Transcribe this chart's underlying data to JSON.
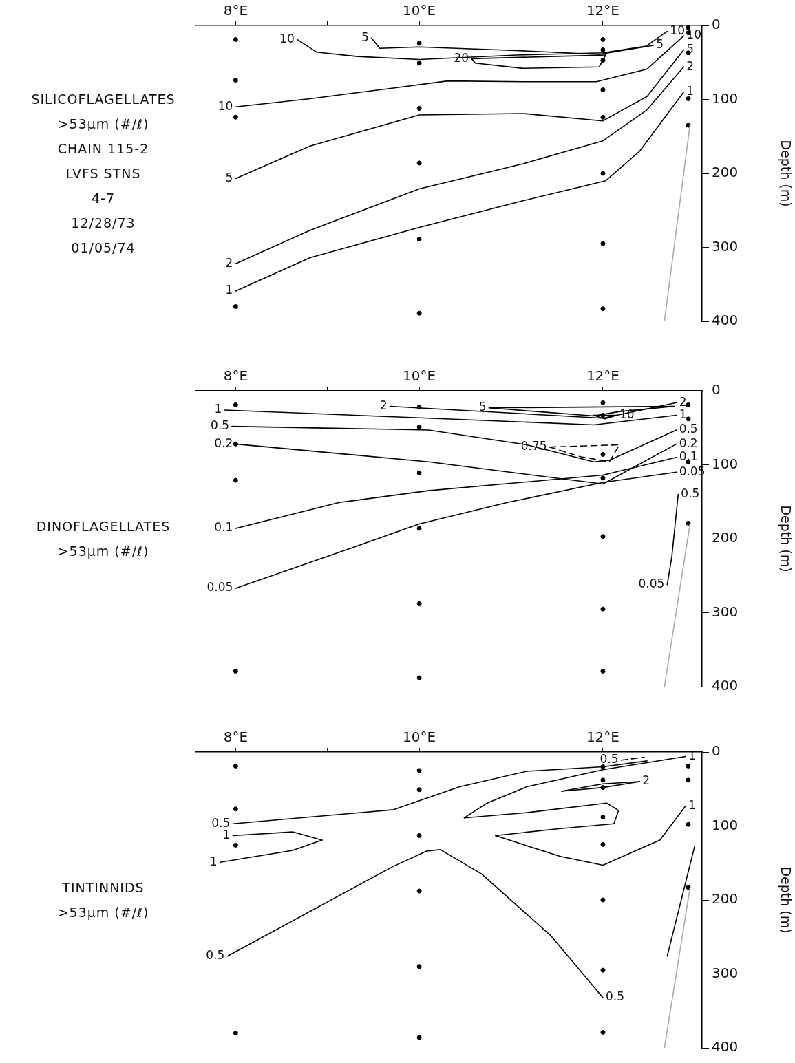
{
  "chart_data": [
    {
      "type": "line",
      "title": "SILICOFLAGELLATES",
      "subtitle": ">53μm (#/ℓ)",
      "ylabel": "Depth (m)",
      "xlim": [
        7.57,
        13.08
      ],
      "xticks": [
        {
          "value": 8,
          "label": "8°E"
        },
        {
          "value": 9,
          "label": null
        },
        {
          "value": 10,
          "label": "10°E"
        },
        {
          "value": 11,
          "label": null
        },
        {
          "value": 12,
          "label": "12°E"
        }
      ],
      "ylim": [
        400,
        0
      ],
      "yticks": [
        0,
        100,
        200,
        300,
        400
      ],
      "grid": false,
      "legend": false,
      "marker": "none",
      "line_style": "solid",
      "annotations": [
        "CHAIN 115-2",
        "LVFS STNS",
        "4-7",
        "12/28/73",
        "01/05/74",
        {
          "text": "10",
          "x": 8.67,
          "y": 19
        },
        {
          "text": "5",
          "x": 9.48,
          "y": 17
        },
        {
          "text": "5",
          "x": 12.55,
          "y": 27
        },
        {
          "text": "10",
          "x": 12.7,
          "y": 8
        },
        {
          "text": "20",
          "x": 10.57,
          "y": 45
        },
        {
          "text": "10",
          "x": 12.88,
          "y": 14
        },
        {
          "text": "5",
          "x": 12.88,
          "y": 33
        },
        {
          "text": "2",
          "x": 12.88,
          "y": 56
        },
        {
          "text": "1",
          "x": 12.88,
          "y": 90
        },
        {
          "text": "10",
          "x": 8,
          "y": 110
        },
        {
          "text": "5",
          "x": 8,
          "y": 207
        },
        {
          "text": "2",
          "x": 8,
          "y": 322
        },
        {
          "text": "1",
          "x": 8,
          "y": 359
        }
      ],
      "series": [
        {
          "type": "scatter",
          "marker": "circle",
          "color": "#000000",
          "x": [
            8,
            8,
            8,
            8,
            10,
            10,
            10,
            10,
            10,
            10,
            12,
            12,
            12,
            12,
            12,
            12,
            12,
            12,
            12.93,
            12.93,
            12.93,
            12.93,
            12.93
          ],
          "values": [
            19,
            74,
            124,
            380,
            24,
            51,
            112,
            186,
            289,
            389,
            19,
            33,
            47,
            87,
            124,
            200,
            295,
            383,
            3,
            10,
            37,
            99,
            135
          ]
        },
        {
          "color": "#000000",
          "x": [
            8.67,
            8.88,
            9.33,
            10,
            11.06,
            12,
            12.47,
            12.7
          ],
          "values": [
            19,
            36,
            42,
            46,
            40,
            37,
            28,
            8
          ]
        },
        {
          "color": "#000000",
          "x": [
            9.48,
            9.57,
            10,
            11.06,
            11.96,
            12.55
          ],
          "values": [
            17,
            31,
            29,
            34,
            39,
            27
          ]
        },
        {
          "color": "#000000",
          "x": [
            10.57,
            11.43,
            12.03
          ],
          "values": [
            45,
            42,
            40
          ]
        },
        {
          "color": "#000000",
          "x": [
            10.57,
            10.61,
            11.13,
            11.96,
            12.03
          ],
          "values": [
            45,
            51,
            58,
            56,
            40
          ]
        },
        {
          "color": "#000000",
          "x": [
            8,
            8.81,
            9.63,
            10.31,
            11.13,
            11.93,
            12.48,
            12.88
          ],
          "values": [
            110,
            99,
            86,
            75,
            76,
            76,
            59,
            14
          ]
        },
        {
          "color": "#000000",
          "x": [
            8,
            8.81,
            10,
            11.13,
            12,
            12.48,
            12.88
          ],
          "values": [
            207,
            163,
            121,
            119,
            129,
            96,
            33
          ]
        },
        {
          "color": "#000000",
          "x": [
            8,
            8.81,
            10,
            11.13,
            12,
            12.48,
            12.88
          ],
          "values": [
            322,
            277,
            221,
            187,
            156,
            114,
            56
          ]
        },
        {
          "color": "#000000",
          "x": [
            8,
            8.81,
            10,
            11.13,
            12.03,
            12.4,
            12.88
          ],
          "values": [
            359,
            314,
            273,
            237,
            210,
            170,
            90
          ]
        },
        {
          "color": "#aaaaaa",
          "x": [
            12.67,
            12.95
          ],
          "values": [
            400,
            133
          ]
        }
      ]
    },
    {
      "type": "line",
      "title": "DINOFLAGELLATES",
      "subtitle": ">53μm (#/ℓ)",
      "ylabel": "Depth (m)",
      "xlim": [
        7.57,
        13.08
      ],
      "xticks": [
        {
          "value": 8,
          "label": "8°E"
        },
        {
          "value": 9,
          "label": null
        },
        {
          "value": 10,
          "label": "10°E"
        },
        {
          "value": 11,
          "label": null
        },
        {
          "value": 12,
          "label": "12°E"
        }
      ],
      "ylim": [
        400,
        0
      ],
      "yticks": [
        0,
        100,
        200,
        300,
        400
      ],
      "grid": false,
      "legend": false,
      "marker": "none",
      "line_style": "solid",
      "annotations": [
        {
          "text": "1",
          "x": 7.88,
          "y": 26
        },
        {
          "text": "0.5",
          "x": 7.96,
          "y": 48
        },
        {
          "text": "0.2",
          "x": 8,
          "y": 72
        },
        {
          "text": "2",
          "x": 9.68,
          "y": 21
        },
        {
          "text": "5",
          "x": 10.76,
          "y": 23
        },
        {
          "text": "10",
          "x": 12.15,
          "y": 33
        },
        {
          "text": "0.75",
          "x": 11.42,
          "y": 76
        },
        {
          "text": "2",
          "x": 12.8,
          "y": 16
        },
        {
          "text": "1",
          "x": 12.8,
          "y": 33
        },
        {
          "text": "0.5",
          "x": 12.8,
          "y": 53
        },
        {
          "text": "0.2",
          "x": 12.8,
          "y": 72
        },
        {
          "text": "0.1",
          "x": 12.8,
          "y": 90
        },
        {
          "text": "0.05",
          "x": 12.8,
          "y": 110
        },
        {
          "text": "0.5",
          "x": 12.82,
          "y": 140
        },
        {
          "text": "0.1",
          "x": 8,
          "y": 186
        },
        {
          "text": "0.05",
          "x": 8,
          "y": 267
        },
        {
          "text": "0.05",
          "x": 12.7,
          "y": 262
        }
      ],
      "series": [
        {
          "type": "scatter",
          "marker": "circle",
          "color": "#000000",
          "x": [
            8,
            8,
            8,
            8,
            10,
            10,
            10,
            10,
            10,
            10,
            12,
            12,
            12,
            12,
            12,
            12,
            12,
            12.93,
            12.93,
            12.93,
            12.93
          ],
          "values": [
            19,
            72,
            121,
            379,
            22,
            49,
            111,
            186,
            288,
            388,
            16,
            33,
            86,
            118,
            197,
            295,
            379,
            19,
            38,
            96,
            179
          ]
        },
        {
          "color": "#000000",
          "x": [
            7.88,
            10.1,
            11.9,
            12.8
          ],
          "values": [
            26,
            37,
            46,
            33
          ]
        },
        {
          "color": "#000000",
          "x": [
            9.68,
            12,
            12.8
          ],
          "values": [
            21,
            37,
            16
          ]
        },
        {
          "color": "#000000",
          "x": [
            10.76,
            11.8,
            12.78
          ],
          "values": [
            23,
            22,
            21
          ]
        },
        {
          "color": "#000000",
          "x": [
            10.76,
            11.28,
            11.9,
            12.18,
            12.78
          ],
          "values": [
            23,
            28,
            34,
            28,
            21
          ]
        },
        {
          "color": "#000000",
          "x": [
            11.9,
            12.15
          ],
          "values": [
            33,
            33
          ]
        },
        {
          "color": "#000000",
          "x": [
            11.9,
            12.02,
            12.15
          ],
          "values": [
            33,
            38,
            33
          ]
        },
        {
          "color": "#000000",
          "line_style": "dashed",
          "x": [
            11.42,
            12.18
          ],
          "values": [
            76,
            73
          ]
        },
        {
          "color": "#000000",
          "line_style": "dashed",
          "x": [
            11.42,
            11.75,
            12.07,
            12.18
          ],
          "values": [
            76,
            89,
            96,
            73
          ]
        },
        {
          "color": "#000000",
          "x": [
            7.96,
            10.1,
            11.17,
            11.9,
            12.07,
            12.8
          ],
          "values": [
            48,
            53,
            73,
            96,
            94,
            53
          ]
        },
        {
          "color": "#000000",
          "x": [
            8,
            10.1,
            12,
            12.8
          ],
          "values": [
            72,
            96,
            126,
            72
          ]
        },
        {
          "color": "#000000",
          "x": [
            8,
            9.13,
            10.1,
            12,
            12.8
          ],
          "values": [
            186,
            151,
            135,
            114,
            90
          ]
        },
        {
          "color": "#000000",
          "x": [
            8,
            9.18,
            10,
            10.96,
            12,
            12.8
          ],
          "values": [
            267,
            216,
            180,
            151,
            124,
            110
          ]
        },
        {
          "color": "#000000",
          "x": [
            12.7,
            12.75,
            12.82
          ],
          "values": [
            262,
            225,
            140
          ]
        },
        {
          "color": "#aaaaaa",
          "x": [
            12.67,
            12.95
          ],
          "values": [
            400,
            179
          ]
        }
      ]
    },
    {
      "type": "line",
      "title": "TINTINNIDS",
      "subtitle": ">53μm (#/ℓ)",
      "ylabel": "Depth (m)",
      "xlim": [
        7.57,
        13.08
      ],
      "xticks": [
        {
          "value": 8,
          "label": "8°E"
        },
        {
          "value": 9,
          "label": null
        },
        {
          "value": 10,
          "label": "10°E"
        },
        {
          "value": 11,
          "label": null
        },
        {
          "value": 12,
          "label": "12°E"
        }
      ],
      "ylim": [
        400,
        0
      ],
      "yticks": [
        0,
        100,
        200,
        300,
        400
      ],
      "grid": false,
      "legend": false,
      "marker": "none",
      "line_style": "solid",
      "annotations": [
        {
          "text": "0.5",
          "x": 12.2,
          "y": 11
        },
        {
          "text": "1",
          "x": 12.9,
          "y": 6
        },
        {
          "text": "2",
          "x": 12.4,
          "y": 40
        },
        {
          "text": "0.5",
          "x": 7.97,
          "y": 97
        },
        {
          "text": "1",
          "x": 7.97,
          "y": 113
        },
        {
          "text": "1",
          "x": 7.83,
          "y": 149
        },
        {
          "text": "1",
          "x": 12.9,
          "y": 73
        },
        {
          "text": "0.5",
          "x": 7.91,
          "y": 276
        },
        {
          "text": "0.5",
          "x": 12,
          "y": 332
        }
      ],
      "series": [
        {
          "type": "scatter",
          "marker": "circle",
          "color": "#000000",
          "x": [
            8,
            8,
            8,
            8,
            10,
            10,
            10,
            10,
            10,
            10,
            12,
            12,
            12,
            12,
            12,
            12,
            12,
            12,
            12.93,
            12.93,
            12.93,
            12.93
          ],
          "values": [
            19,
            77,
            126,
            380,
            25,
            51,
            113,
            188,
            290,
            386,
            20,
            38,
            48,
            88,
            125,
            200,
            295,
            379,
            19,
            38,
            98,
            183
          ]
        },
        {
          "color": "#000000",
          "x": [
            7.97,
            9.72,
            10.44,
            11.17,
            12,
            12.48
          ],
          "values": [
            97,
            78,
            47,
            26,
            20,
            12
          ]
        },
        {
          "color": "#000000",
          "line_style": "dashed",
          "x": [
            12.2,
            12.45
          ],
          "values": [
            11,
            7
          ]
        },
        {
          "color": "#000000",
          "x": [
            10.49,
            10.74,
            11.17,
            12,
            12.9
          ],
          "values": [
            89,
            69,
            47,
            24,
            6
          ]
        },
        {
          "color": "#000000",
          "x": [
            10.49,
            11.17,
            12.04,
            12.17
          ],
          "values": [
            89,
            82,
            69,
            79
          ]
        },
        {
          "color": "#000000",
          "x": [
            12.12,
            12.17
          ],
          "values": [
            97,
            79
          ]
        },
        {
          "color": "#000000",
          "x": [
            10.83,
            11.5,
            12.12
          ],
          "values": [
            113,
            104,
            97
          ]
        },
        {
          "color": "#000000",
          "x": [
            10.83,
            11.53,
            12,
            12.62,
            12.9
          ],
          "values": [
            113,
            141,
            153,
            119,
            73
          ]
        },
        {
          "color": "#000000",
          "x": [
            11.55,
            12,
            12.4
          ],
          "values": [
            53,
            43,
            40
          ]
        },
        {
          "color": "#000000",
          "x": [
            11.55,
            12,
            12.4
          ],
          "values": [
            53,
            48,
            40
          ]
        },
        {
          "color": "#000000",
          "x": [
            7.97,
            8.62,
            8.94
          ],
          "values": [
            113,
            108,
            119
          ]
        },
        {
          "color": "#000000",
          "x": [
            7.83,
            8.62,
            8.94
          ],
          "values": [
            149,
            133,
            119
          ]
        },
        {
          "color": "#000000",
          "x": [
            7.91,
            9.71,
            10.08,
            10.23,
            10.68,
            11.43,
            12
          ],
          "values": [
            276,
            155,
            134,
            132,
            165,
            248,
            332
          ]
        },
        {
          "color": "#000000",
          "x": [
            12.7,
            13.0
          ],
          "values": [
            276,
            127
          ]
        },
        {
          "color": "#aaaaaa",
          "x": [
            12.67,
            12.95
          ],
          "values": [
            400,
            183
          ]
        }
      ]
    }
  ]
}
